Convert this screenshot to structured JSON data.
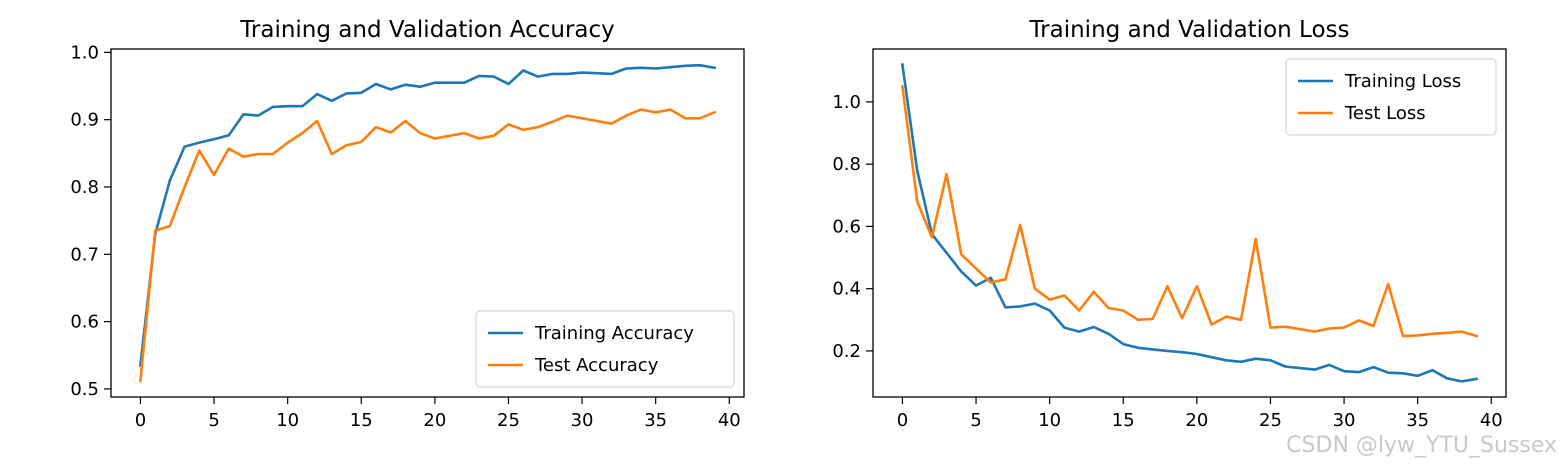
{
  "watermark": "CSDN @lyw_YTU_Sussex",
  "chart_data": [
    {
      "type": "line",
      "title": "Training and Validation Accuracy",
      "xlabel": "",
      "ylabel": "",
      "xlim": [
        -2,
        41
      ],
      "ylim": [
        0.488,
        1.005
      ],
      "xticks": [
        0,
        5,
        10,
        15,
        20,
        25,
        30,
        35,
        40
      ],
      "yticks": [
        0.5,
        0.6,
        0.7,
        0.8,
        0.9,
        1.0
      ],
      "ytick_labels": [
        "0.5",
        "0.6",
        "0.7",
        "0.8",
        "0.9",
        "1.0"
      ],
      "legend": "lower-right",
      "grid": false,
      "x": [
        0,
        1,
        2,
        3,
        4,
        5,
        6,
        7,
        8,
        9,
        10,
        11,
        12,
        13,
        14,
        15,
        16,
        17,
        18,
        19,
        20,
        21,
        22,
        23,
        24,
        25,
        26,
        27,
        28,
        29,
        30,
        31,
        32,
        33,
        34,
        35,
        36,
        37,
        38,
        39
      ],
      "series": [
        {
          "name": "Training Accuracy",
          "color": "#1f77b4",
          "values": [
            0.535,
            0.73,
            0.81,
            0.86,
            0.866,
            0.871,
            0.877,
            0.908,
            0.906,
            0.919,
            0.92,
            0.92,
            0.938,
            0.928,
            0.939,
            0.94,
            0.953,
            0.945,
            0.952,
            0.949,
            0.955,
            0.955,
            0.955,
            0.965,
            0.964,
            0.953,
            0.973,
            0.964,
            0.968,
            0.968,
            0.97,
            0.969,
            0.968,
            0.976,
            0.977,
            0.976,
            0.978,
            0.98,
            0.981,
            0.977
          ]
        },
        {
          "name": "Test Accuracy",
          "color": "#ff7f0e",
          "values": [
            0.512,
            0.735,
            0.742,
            0.8,
            0.854,
            0.818,
            0.857,
            0.845,
            0.849,
            0.849,
            0.866,
            0.88,
            0.898,
            0.849,
            0.862,
            0.867,
            0.889,
            0.881,
            0.898,
            0.88,
            0.872,
            0.876,
            0.88,
            0.872,
            0.876,
            0.893,
            0.885,
            0.889,
            0.897,
            0.906,
            0.902,
            0.898,
            0.894,
            0.906,
            0.915,
            0.911,
            0.915,
            0.902,
            0.902,
            0.911
          ]
        }
      ]
    },
    {
      "type": "line",
      "title": "Training and Validation Loss",
      "xlabel": "",
      "ylabel": "",
      "xlim": [
        -2,
        41
      ],
      "ylim": [
        0.052,
        1.17
      ],
      "xticks": [
        0,
        5,
        10,
        15,
        20,
        25,
        30,
        35,
        40
      ],
      "yticks": [
        0.2,
        0.4,
        0.6,
        0.8,
        1.0
      ],
      "ytick_labels": [
        "0.2",
        "0.4",
        "0.6",
        "0.8",
        "1.0"
      ],
      "legend": "upper-right",
      "grid": false,
      "x": [
        0,
        1,
        2,
        3,
        4,
        5,
        6,
        7,
        8,
        9,
        10,
        11,
        12,
        13,
        14,
        15,
        16,
        17,
        18,
        19,
        20,
        21,
        22,
        23,
        24,
        25,
        26,
        27,
        28,
        29,
        30,
        31,
        32,
        33,
        34,
        35,
        36,
        37,
        38,
        39
      ],
      "series": [
        {
          "name": "Training Loss",
          "color": "#1f77b4",
          "values": [
            1.12,
            0.78,
            0.575,
            0.515,
            0.455,
            0.41,
            0.435,
            0.34,
            0.343,
            0.352,
            0.33,
            0.275,
            0.262,
            0.277,
            0.255,
            0.222,
            0.21,
            0.205,
            0.2,
            0.196,
            0.19,
            0.18,
            0.17,
            0.165,
            0.175,
            0.17,
            0.15,
            0.145,
            0.14,
            0.155,
            0.135,
            0.132,
            0.148,
            0.13,
            0.128,
            0.12,
            0.138,
            0.112,
            0.102,
            0.11
          ]
        },
        {
          "name": "Test Loss",
          "color": "#ff7f0e",
          "values": [
            1.05,
            0.68,
            0.565,
            0.768,
            0.51,
            0.465,
            0.42,
            0.43,
            0.605,
            0.4,
            0.365,
            0.378,
            0.33,
            0.39,
            0.338,
            0.33,
            0.3,
            0.303,
            0.408,
            0.305,
            0.408,
            0.285,
            0.31,
            0.3,
            0.56,
            0.275,
            0.278,
            0.27,
            0.262,
            0.272,
            0.275,
            0.298,
            0.28,
            0.415,
            0.248,
            0.25,
            0.255,
            0.258,
            0.262,
            0.248
          ]
        }
      ]
    }
  ]
}
